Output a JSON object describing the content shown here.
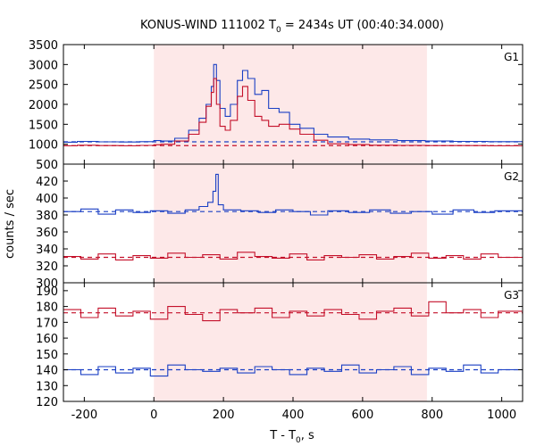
{
  "chart_data": {
    "type": "line",
    "title_main": "KONUS-WIND 111002 T",
    "title_sub": "0",
    "title_rest": " = 2434s UT (00:40:34.000)",
    "xlabel_main": "T - T",
    "xlabel_sub": "0",
    "xlabel_rest": ", s",
    "ylabel": "counts / sec",
    "xlim": [
      -260,
      1060
    ],
    "x_ticks": [
      -200,
      0,
      200,
      400,
      600,
      800,
      1000
    ],
    "highlight_interval": [
      0,
      785
    ],
    "highlight_color": "#fde8e8",
    "colors": {
      "blue": "#1a3fc4",
      "red": "#c4102a",
      "cyan": "#33b3e8",
      "pink": "#e87aa8"
    },
    "panels": [
      {
        "name": "G1",
        "ylim": [
          500,
          3500
        ],
        "y_ticks": [
          500,
          1000,
          1500,
          2000,
          2500,
          3000,
          3500
        ],
        "background_levels": [
          {
            "color": "blue",
            "value": 1060
          },
          {
            "color": "red",
            "value": 965
          }
        ],
        "series": [
          {
            "color": "blue",
            "x": [
              -260,
              -220,
              -160,
              -100,
              -40,
              0,
              20,
              60,
              100,
              130,
              150,
              165,
              172,
              180,
              190,
              205,
              220,
              240,
              255,
              270,
              290,
              310,
              330,
              360,
              390,
              420,
              460,
              500,
              560,
              620,
              700,
              780,
              860,
              960,
              1060
            ],
            "y": [
              1050,
              1070,
              1060,
              1055,
              1065,
              1090,
              1080,
              1150,
              1350,
              1650,
              2000,
              2450,
              3000,
              2600,
              1900,
              1700,
              2000,
              2600,
              2850,
              2650,
              2250,
              2350,
              1900,
              1800,
              1500,
              1400,
              1250,
              1180,
              1130,
              1110,
              1090,
              1080,
              1070,
              1065,
              1060
            ]
          },
          {
            "color": "red",
            "x": [
              -260,
              -220,
              -160,
              -100,
              -40,
              0,
              20,
              60,
              100,
              130,
              150,
              165,
              172,
              180,
              190,
              205,
              220,
              240,
              255,
              270,
              290,
              310,
              330,
              360,
              390,
              420,
              460,
              500,
              560,
              620,
              700,
              780,
              860,
              960,
              1060
            ],
            "y": [
              960,
              975,
              965,
              960,
              970,
              985,
              1000,
              1080,
              1250,
              1550,
              1950,
              2300,
              2650,
              2000,
              1450,
              1350,
              1600,
              2200,
              2450,
              2100,
              1700,
              1600,
              1450,
              1500,
              1380,
              1250,
              1100,
              1010,
              990,
              975,
              970,
              965,
              965,
              960,
              965
            ]
          }
        ]
      },
      {
        "name": "G2",
        "ylim": [
          300,
          440
        ],
        "y_ticks": [
          300,
          320,
          340,
          360,
          380,
          400,
          420
        ],
        "background_levels": [
          {
            "color": "blue",
            "value": 384
          },
          {
            "color": "red",
            "value": 330
          }
        ],
        "series": [
          {
            "color": "blue",
            "x": [
              -260,
              -210,
              -160,
              -110,
              -60,
              -10,
              40,
              90,
              130,
              155,
              170,
              178,
              185,
              200,
              250,
              300,
              350,
              400,
              450,
              500,
              560,
              620,
              680,
              740,
              800,
              860,
              920,
              980,
              1060
            ],
            "y": [
              384,
              387,
              381,
              386,
              383,
              385,
              382,
              386,
              390,
              395,
              408,
              428,
              392,
              386,
              385,
              383,
              386,
              384,
              380,
              385,
              383,
              386,
              382,
              384,
              381,
              386,
              383,
              385,
              384
            ]
          },
          {
            "color": "red",
            "x": [
              -260,
              -210,
              -160,
              -110,
              -60,
              -10,
              40,
              90,
              140,
              190,
              240,
              290,
              340,
              390,
              440,
              490,
              540,
              590,
              640,
              690,
              740,
              790,
              840,
              890,
              940,
              990,
              1060
            ],
            "y": [
              331,
              328,
              334,
              327,
              332,
              329,
              335,
              330,
              333,
              328,
              336,
              331,
              329,
              334,
              327,
              332,
              330,
              333,
              328,
              331,
              335,
              329,
              332,
              328,
              334,
              330,
              331
            ]
          }
        ]
      },
      {
        "name": "G3",
        "ylim": [
          120,
          195
        ],
        "y_ticks": [
          120,
          130,
          140,
          150,
          160,
          170,
          180,
          190
        ],
        "background_levels": [
          {
            "color": "red",
            "value": 176
          },
          {
            "color": "blue",
            "value": 140
          }
        ],
        "series": [
          {
            "color": "red",
            "x": [
              -260,
              -210,
              -160,
              -110,
              -60,
              -10,
              40,
              90,
              140,
              190,
              240,
              290,
              340,
              390,
              440,
              490,
              540,
              590,
              640,
              690,
              740,
              790,
              840,
              890,
              940,
              990,
              1060
            ],
            "y": [
              178,
              173,
              179,
              174,
              177,
              172,
              180,
              175,
              171,
              178,
              176,
              179,
              173,
              177,
              174,
              178,
              175,
              172,
              177,
              179,
              174,
              183,
              176,
              178,
              173,
              177,
              175
            ]
          },
          {
            "color": "blue",
            "x": [
              -260,
              -210,
              -160,
              -110,
              -60,
              -10,
              40,
              90,
              140,
              190,
              240,
              290,
              340,
              390,
              440,
              490,
              540,
              590,
              640,
              690,
              740,
              790,
              840,
              890,
              940,
              990,
              1060
            ],
            "y": [
              140,
              137,
              142,
              138,
              141,
              136,
              143,
              140,
              139,
              141,
              138,
              142,
              140,
              137,
              141,
              139,
              143,
              138,
              140,
              142,
              137,
              141,
              139,
              143,
              138,
              140,
              134
            ]
          }
        ]
      }
    ]
  }
}
